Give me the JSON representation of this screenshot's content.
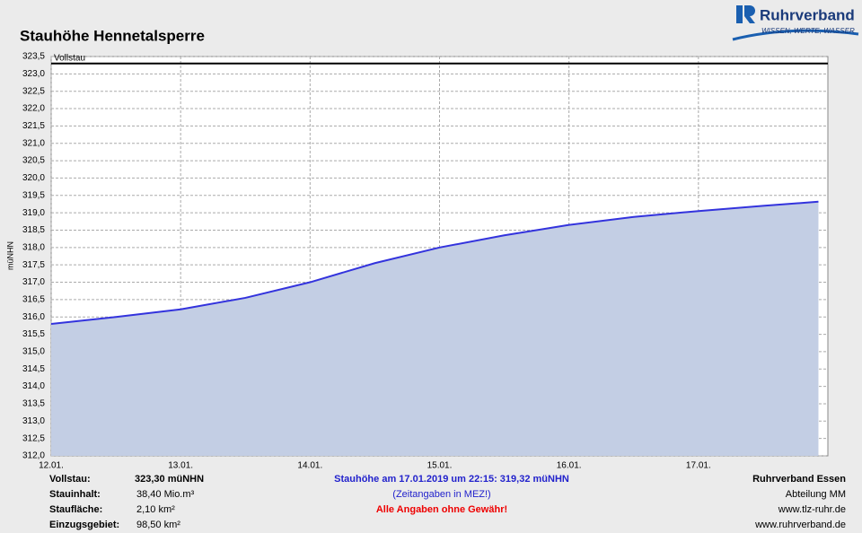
{
  "chart_data": {
    "type": "area",
    "title": "Stauhöhe Hennetalsperre",
    "y_label": "müNHN",
    "x": [
      12.0,
      12.5,
      13.0,
      13.5,
      14.0,
      14.5,
      15.0,
      15.5,
      16.0,
      16.5,
      17.0,
      17.5,
      17.927
    ],
    "values": [
      315.8,
      316.0,
      316.22,
      316.55,
      317.0,
      317.55,
      318.0,
      318.35,
      318.65,
      318.88,
      319.05,
      319.2,
      319.32
    ],
    "color": "#3333dd",
    "fill_color": "#c3cee4",
    "reference_line": {
      "value": 323.3,
      "label": "Vollstau"
    },
    "xlim": [
      12,
      18
    ],
    "xticks": [
      {
        "value": 12,
        "label": "12.01."
      },
      {
        "value": 13,
        "label": "13.01."
      },
      {
        "value": 14,
        "label": "14.01."
      },
      {
        "value": 15,
        "label": "15.01."
      },
      {
        "value": 16,
        "label": "16.01."
      },
      {
        "value": 17,
        "label": "17.01."
      }
    ],
    "ylim": [
      312,
      323.5
    ],
    "yticks": [
      {
        "value": 312,
        "label": "312,0"
      },
      {
        "value": 312.5,
        "label": "312,5"
      },
      {
        "value": 313,
        "label": "313,0"
      },
      {
        "value": 313.5,
        "label": "313,5"
      },
      {
        "value": 314,
        "label": "314,0"
      },
      {
        "value": 314.5,
        "label": "314,5"
      },
      {
        "value": 315,
        "label": "315,0"
      },
      {
        "value": 315.5,
        "label": "315,5"
      },
      {
        "value": 316,
        "label": "316,0"
      },
      {
        "value": 316.5,
        "label": "316,5"
      },
      {
        "value": 317,
        "label": "317,0"
      },
      {
        "value": 317.5,
        "label": "317,5"
      },
      {
        "value": 318,
        "label": "318,0"
      },
      {
        "value": 318.5,
        "label": "318,5"
      },
      {
        "value": 319,
        "label": "319,0"
      },
      {
        "value": 319.5,
        "label": "319,5"
      },
      {
        "value": 320,
        "label": "320,0"
      },
      {
        "value": 320.5,
        "label": "320,5"
      },
      {
        "value": 321,
        "label": "321,0"
      },
      {
        "value": 321.5,
        "label": "321,5"
      },
      {
        "value": 322,
        "label": "322,0"
      },
      {
        "value": 322.5,
        "label": "322,5"
      },
      {
        "value": 323,
        "label": "323,0"
      },
      {
        "value": 323.5,
        "label": "323,5"
      }
    ],
    "grid": true
  },
  "logo": {
    "name": "Ruhrverband",
    "slogan": "WISSEN, WERTE, WASSER"
  },
  "footer": {
    "left": [
      {
        "label": "Vollstau:",
        "value": "323,30 müNHN"
      },
      {
        "label": "Stauinhalt:",
        "value": "38,40 Mio.m³"
      },
      {
        "label": "Staufläche:",
        "value": "2,10 km²"
      },
      {
        "label": "Einzugsgebiet:",
        "value": "98,50 km²"
      }
    ],
    "center": [
      "Stauhöhe am 17.01.2019 um 22:15: 319,32  müNHN",
      "(Zeitangaben in MEZ!)",
      "Alle Angaben ohne Gewähr!"
    ],
    "right": [
      "Ruhrverband Essen",
      "Abteilung MM",
      "www.tlz-ruhr.de",
      "www.ruhrverband.de"
    ]
  }
}
